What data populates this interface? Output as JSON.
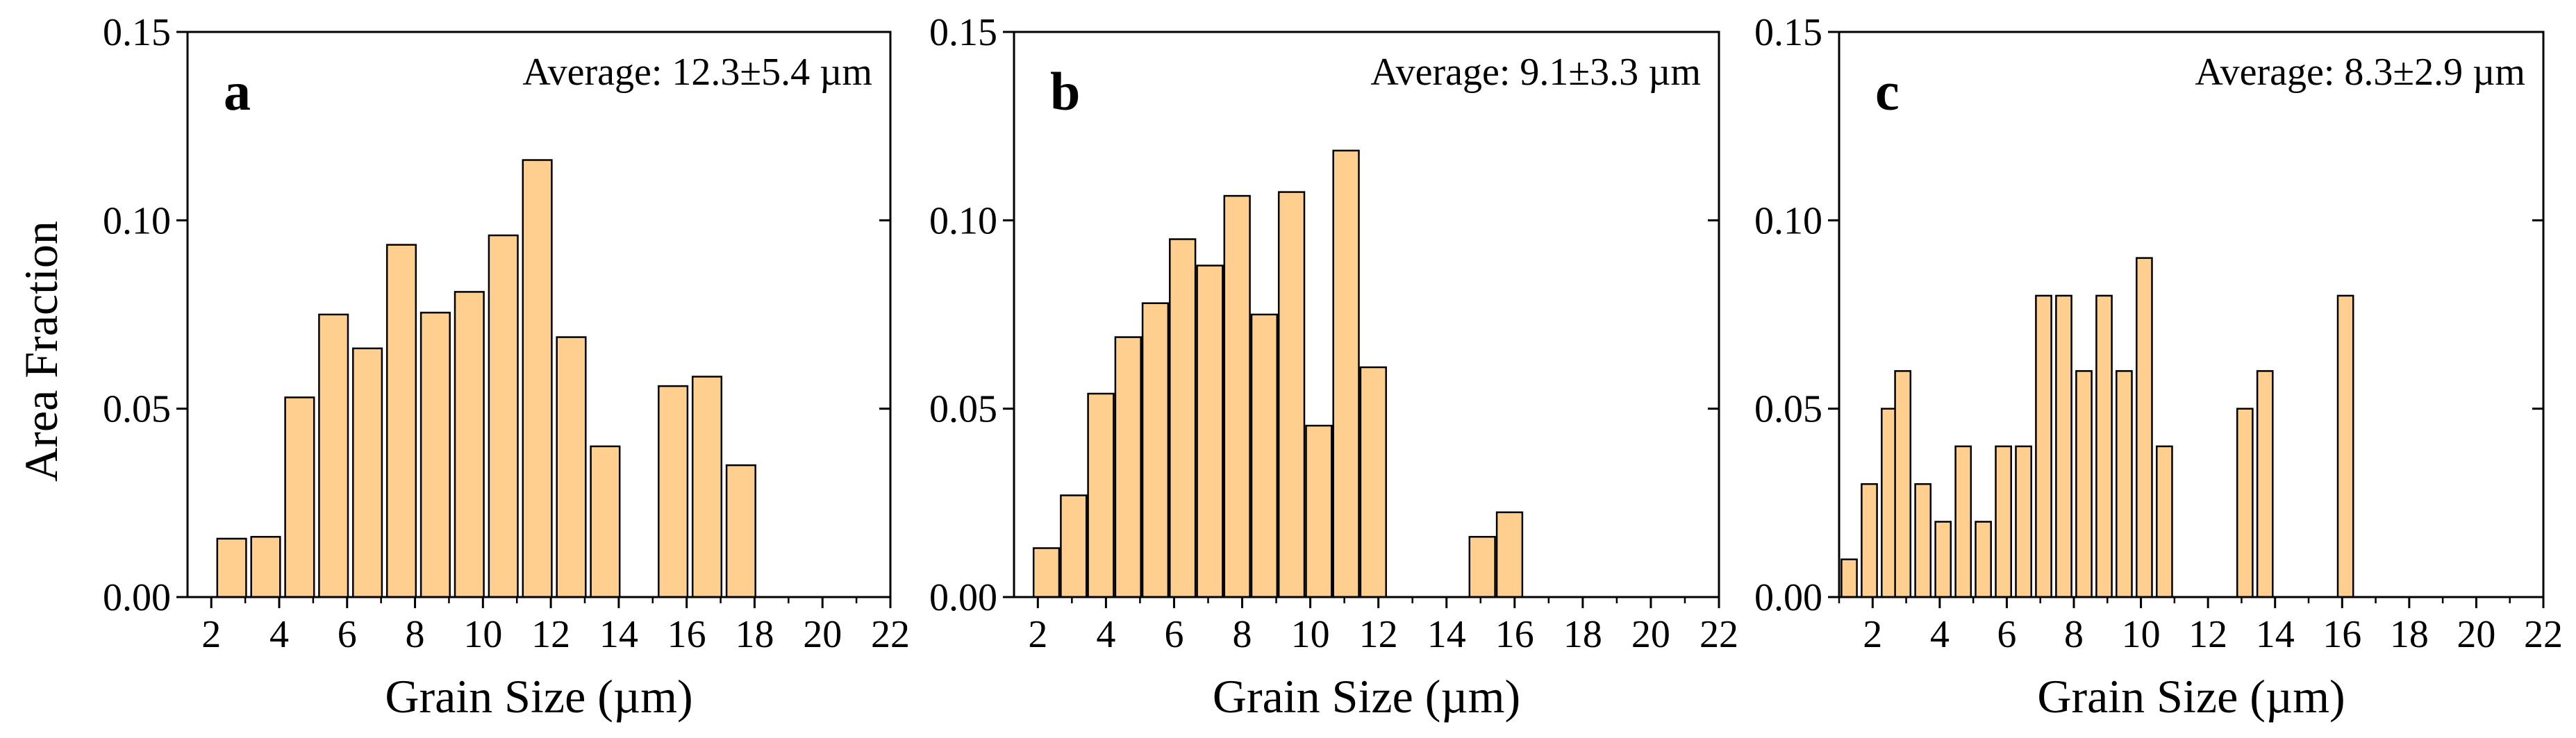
{
  "figure": {
    "y_axis_title": "Area Fraction"
  },
  "chart_data": [
    {
      "type": "bar",
      "panel_label": "a",
      "annotation": "Average: 12.3±5.4 µm",
      "xlabel": "Grain Size (µm)",
      "ylabel": "Area Fraction",
      "xlim": [
        1.3,
        22
      ],
      "ylim": [
        0,
        0.15
      ],
      "xticks": [
        2,
        4,
        6,
        8,
        10,
        12,
        14,
        16,
        18,
        20,
        22
      ],
      "yticks": [
        0.0,
        0.05,
        0.1,
        0.15
      ],
      "ytick_labels": [
        "0.00",
        "0.05",
        "0.10",
        "0.15"
      ],
      "bar_width": 0.85,
      "bar_color": "#FFCF90",
      "x": [
        2.6,
        3.6,
        4.6,
        5.6,
        6.6,
        7.6,
        8.6,
        9.6,
        10.6,
        11.6,
        12.6,
        13.6,
        15.6,
        16.6,
        17.6
      ],
      "values": [
        0.0155,
        0.016,
        0.053,
        0.075,
        0.066,
        0.0935,
        0.0755,
        0.081,
        0.096,
        0.116,
        0.069,
        0.04,
        0.056,
        0.0585,
        0.035
      ]
    },
    {
      "type": "bar",
      "panel_label": "b",
      "annotation": "Average: 9.1±3.3 µm",
      "xlabel": "Grain Size (µm)",
      "ylabel": "Area Fraction",
      "xlim": [
        1.3,
        22
      ],
      "ylim": [
        0,
        0.15
      ],
      "xticks": [
        2,
        4,
        6,
        8,
        10,
        12,
        14,
        16,
        18,
        20,
        22
      ],
      "yticks": [
        0.0,
        0.05,
        0.1,
        0.15
      ],
      "ytick_labels": [
        "0.00",
        "0.05",
        "0.10",
        "0.15"
      ],
      "bar_width": 0.75,
      "bar_color": "#FFCF90",
      "x": [
        2.25,
        3.05,
        3.85,
        4.65,
        5.45,
        6.25,
        7.05,
        7.85,
        8.65,
        9.45,
        10.25,
        11.05,
        11.85,
        15.05,
        15.85
      ],
      "values": [
        0.013,
        0.027,
        0.054,
        0.069,
        0.078,
        0.095,
        0.088,
        0.1065,
        0.075,
        0.1075,
        0.0455,
        0.1185,
        0.061,
        0.016,
        0.0225
      ]
    },
    {
      "type": "bar",
      "panel_label": "c",
      "annotation": "Average: 8.3±2.9 µm",
      "xlabel": "Grain Size (µm)",
      "ylabel": "Area Fraction",
      "xlim": [
        1,
        22
      ],
      "ylim": [
        0,
        0.15
      ],
      "xticks": [
        2,
        4,
        6,
        8,
        10,
        12,
        14,
        16,
        18,
        20,
        22
      ],
      "yticks": [
        0.0,
        0.05,
        0.1,
        0.15
      ],
      "ytick_labels": [
        "0.00",
        "0.05",
        "0.10",
        "0.15"
      ],
      "bar_width": 0.46,
      "bar_color": "#FFCF90",
      "x": [
        1.3,
        1.9,
        2.5,
        2.9,
        3.5,
        4.1,
        4.7,
        5.3,
        5.9,
        6.5,
        7.1,
        7.7,
        8.3,
        8.9,
        9.5,
        10.1,
        10.7,
        13.1,
        13.7,
        16.1
      ],
      "values": [
        0.01,
        0.03,
        0.05,
        0.06,
        0.03,
        0.02,
        0.04,
        0.02,
        0.04,
        0.04,
        0.08,
        0.08,
        0.06,
        0.08,
        0.06,
        0.09,
        0.04,
        0.05,
        0.06,
        0.08
      ]
    }
  ]
}
